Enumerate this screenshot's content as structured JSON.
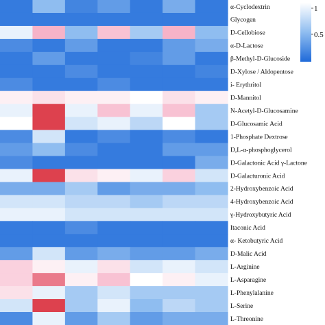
{
  "chart_data": {
    "type": "heatmap",
    "title": "",
    "xlabel": "",
    "ylabel": "",
    "rows": [
      "α-Cyclodextrin",
      "Glycogen",
      "D-Cellobiose",
      "α-D-Lactose",
      "β-Methyl-D-Glucoside",
      "D-Xylose / Aldopentose",
      "i- Erythritol",
      "D-Mannitol",
      "N-Acetyl-D-Glucosamine",
      "D-Glucosamic Acid",
      "1-Phosphate Dextrose",
      "D,L-α-phosphoglycerol",
      "D-Galactonic Acid γ-Lactone",
      "D-Galacturonic Acid",
      "2-Hydroxybenzoic Acid",
      "4-Hydroxybenzoic Acid",
      "γ-Hydroxybutyric Acid",
      "Itaconic Acid",
      "α- Ketobutyric Acid",
      "D-Malic Acid",
      "L-Arginine",
      "L-Asparagine",
      "L-Phenylalanine",
      "L-Serine",
      "L-Threonine"
    ],
    "columns_count": 7,
    "values": [
      [
        0.05,
        0.25,
        0.08,
        0.15,
        0.05,
        0.2,
        0.05
      ],
      [
        0.05,
        0.05,
        0.05,
        0.05,
        0.05,
        0.05,
        0.05
      ],
      [
        0.45,
        0.75,
        0.25,
        0.7,
        0.3,
        0.75,
        0.25
      ],
      [
        0.1,
        0.05,
        0.15,
        0.05,
        0.05,
        0.15,
        0.2
      ],
      [
        0.05,
        0.15,
        0.05,
        0.05,
        0.08,
        0.15,
        0.05
      ],
      [
        0.05,
        0.05,
        0.1,
        0.05,
        0.05,
        0.05,
        0.08
      ],
      [
        0.1,
        0.05,
        0.05,
        0.1,
        0.05,
        0.05,
        0.05
      ],
      [
        0.55,
        0.6,
        0.55,
        0.55,
        0.5,
        0.6,
        0.55
      ],
      [
        0.45,
        0.95,
        0.45,
        0.7,
        0.45,
        0.7,
        0.3
      ],
      [
        0.5,
        0.95,
        0.4,
        0.45,
        0.35,
        0.5,
        0.3
      ],
      [
        0.1,
        0.4,
        0.05,
        0.1,
        0.05,
        0.1,
        0.05
      ],
      [
        0.15,
        0.25,
        0.1,
        0.05,
        0.05,
        0.15,
        0.15
      ],
      [
        0.1,
        0.05,
        0.05,
        0.05,
        0.05,
        0.05,
        0.2
      ],
      [
        0.45,
        0.95,
        0.6,
        0.55,
        0.45,
        0.65,
        0.4
      ],
      [
        0.2,
        0.2,
        0.3,
        0.15,
        0.2,
        0.2,
        0.25
      ],
      [
        0.4,
        0.4,
        0.35,
        0.35,
        0.3,
        0.35,
        0.35
      ],
      [
        0.45,
        0.45,
        0.4,
        0.4,
        0.4,
        0.4,
        0.4
      ],
      [
        0.05,
        0.05,
        0.1,
        0.05,
        0.05,
        0.05,
        0.05
      ],
      [
        0.05,
        0.05,
        0.05,
        0.05,
        0.05,
        0.05,
        0.05
      ],
      [
        0.15,
        0.4,
        0.15,
        0.2,
        0.15,
        0.15,
        0.2
      ],
      [
        0.65,
        0.55,
        0.45,
        0.6,
        0.4,
        0.45,
        0.4
      ],
      [
        0.65,
        0.85,
        0.55,
        0.7,
        0.5,
        0.55,
        0.45
      ],
      [
        0.6,
        0.45,
        0.3,
        0.4,
        0.3,
        0.3,
        0.3
      ],
      [
        0.4,
        0.95,
        0.3,
        0.45,
        0.25,
        0.35,
        0.3
      ],
      [
        0.1,
        0.45,
        0.15,
        0.3,
        0.15,
        0.2,
        0.2
      ]
    ],
    "colorbar": {
      "ticks": [
        {
          "value": 1,
          "label": "1"
        },
        {
          "value": 0.5,
          "label": "0.5"
        }
      ],
      "colors": [
        "#d7242f",
        "#f6b3c8",
        "#ffffff",
        "#8fbdf0",
        "#1f6ad9"
      ]
    }
  }
}
